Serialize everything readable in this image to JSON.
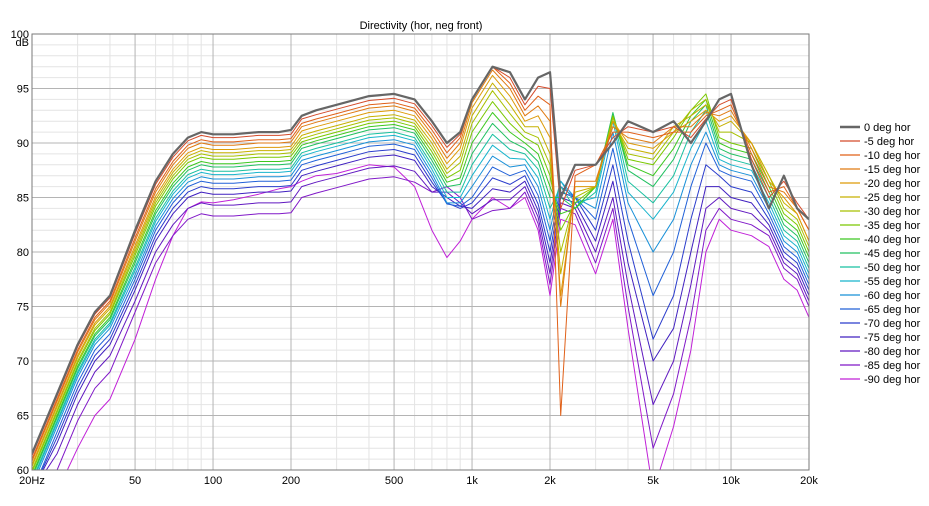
{
  "chart_data": {
    "type": "line",
    "title": "Directivity (hor, neg front)",
    "ylabel": "dB",
    "x_scale": "log",
    "xlim": [
      20,
      20000
    ],
    "ylim": [
      60,
      100
    ],
    "grid": true,
    "legend_position": "right",
    "x_tick_labels": [
      {
        "value": 20,
        "label": "20Hz"
      },
      {
        "value": 50,
        "label": "50"
      },
      {
        "value": 100,
        "label": "100"
      },
      {
        "value": 200,
        "label": "200"
      },
      {
        "value": 500,
        "label": "500"
      },
      {
        "value": 1000,
        "label": "1k"
      },
      {
        "value": 2000,
        "label": "2k"
      },
      {
        "value": 5000,
        "label": "5k"
      },
      {
        "value": 10000,
        "label": "10k"
      },
      {
        "value": 20000,
        "label": "20k"
      }
    ],
    "y_tick_labels": [
      {
        "value": 100,
        "label": "100"
      },
      {
        "value": 95,
        "label": "95"
      },
      {
        "value": 90,
        "label": "90"
      },
      {
        "value": 85,
        "label": "85"
      },
      {
        "value": 80,
        "label": "80"
      },
      {
        "value": 75,
        "label": "75"
      },
      {
        "value": 70,
        "label": "70"
      },
      {
        "value": 65,
        "label": "65"
      },
      {
        "value": 60,
        "label": "60"
      }
    ],
    "x": [
      20,
      25,
      30,
      35,
      40,
      50,
      60,
      70,
      80,
      90,
      100,
      120,
      150,
      180,
      200,
      220,
      250,
      300,
      400,
      500,
      600,
      700,
      800,
      900,
      1000,
      1200,
      1400,
      1600,
      1800,
      2000,
      2200,
      2500,
      3000,
      3500,
      4000,
      5000,
      6000,
      7000,
      8000,
      9000,
      10000,
      12000,
      14000,
      16000,
      18000,
      20000
    ],
    "series": [
      {
        "name": "0 deg hor",
        "color": "#666666",
        "width": 2.2,
        "values": [
          61.5,
          67,
          71.5,
          74.5,
          76,
          82,
          86.5,
          89,
          90.5,
          91,
          90.8,
          90.8,
          91,
          91,
          91.2,
          92.5,
          93,
          93.5,
          94.3,
          94.5,
          94,
          92,
          90,
          91,
          94,
          97,
          96.5,
          94,
          96,
          96.5,
          85,
          88,
          88,
          90,
          92,
          91,
          92,
          90,
          92,
          94,
          94.5,
          88,
          84,
          87,
          84,
          83
        ]
      },
      {
        "name": "-5 deg hor",
        "color": "#d44a2a",
        "width": 1,
        "values": [
          61.3,
          66.8,
          71.3,
          74.3,
          75.8,
          81.7,
          86.2,
          88.7,
          90.2,
          90.7,
          90.5,
          90.5,
          90.7,
          90.7,
          90.8,
          92.2,
          92.6,
          93.1,
          93.9,
          94.1,
          93.6,
          91.6,
          89.6,
          90.8,
          94,
          97,
          96,
          93.5,
          95.2,
          95,
          84,
          87.5,
          88,
          90.5,
          91.5,
          91,
          91.5,
          90.5,
          92.2,
          93.5,
          94,
          88.5,
          85,
          86.5,
          84.5,
          83
        ]
      },
      {
        "name": "-10 deg hor",
        "color": "#e06018",
        "width": 1,
        "values": [
          61,
          66.5,
          71,
          74,
          75.5,
          81.3,
          85.8,
          88.3,
          89.8,
          90.3,
          90.1,
          90.1,
          90.3,
          90.3,
          90.4,
          91.8,
          92.2,
          92.7,
          93.5,
          93.7,
          93.2,
          91.2,
          89.1,
          90.5,
          94,
          97,
          95.5,
          93,
          94.3,
          93.5,
          65,
          87,
          88,
          91,
          91,
          90.5,
          91,
          91,
          92.5,
          93,
          93.5,
          89,
          85.5,
          86,
          84,
          82
        ]
      },
      {
        "name": "-15 deg hor",
        "color": "#e07a10",
        "width": 1,
        "values": [
          60.8,
          66.3,
          70.8,
          73.8,
          75.3,
          81,
          85.5,
          88,
          89.5,
          90,
          89.8,
          89.8,
          90,
          90,
          90.1,
          91.5,
          91.9,
          92.4,
          93.2,
          93.4,
          92.9,
          90.8,
          88.6,
          90,
          93.7,
          96.7,
          95,
          92.5,
          93.4,
          92,
          75,
          86.5,
          86.5,
          91.5,
          90.5,
          90,
          91.5,
          91.5,
          92.8,
          92.5,
          93,
          89.5,
          86,
          85.5,
          84,
          82
        ]
      },
      {
        "name": "-20 deg hor",
        "color": "#dd9a08",
        "width": 1,
        "values": [
          60.5,
          66,
          70.5,
          73.5,
          75,
          80.6,
          85.1,
          87.6,
          89.1,
          89.6,
          89.4,
          89.4,
          89.6,
          89.6,
          89.7,
          91.1,
          91.5,
          92,
          92.8,
          93,
          92.5,
          90.4,
          88.1,
          89.5,
          93.2,
          96.2,
          94.3,
          92,
          92.5,
          90.5,
          76,
          86,
          86,
          92,
          90,
          89.5,
          91,
          92,
          93,
          92,
          92.5,
          90,
          86.5,
          85,
          83.5,
          81
        ]
      },
      {
        "name": "-25 deg hor",
        "color": "#c6b000",
        "width": 1,
        "values": [
          60.3,
          65.8,
          70.3,
          73.3,
          74.8,
          80.3,
          84.8,
          87.3,
          88.8,
          89.3,
          89.1,
          89.1,
          89.3,
          89.3,
          89.4,
          90.7,
          91.1,
          91.6,
          92.4,
          92.6,
          92.1,
          90,
          87.6,
          88.8,
          92.5,
          95.5,
          93.5,
          91.5,
          91.5,
          89,
          78,
          85.5,
          86,
          92,
          89.5,
          89,
          91.5,
          92.5,
          93.5,
          91.5,
          92,
          90,
          87,
          84.5,
          83.5,
          81
        ]
      },
      {
        "name": "-30 deg hor",
        "color": "#a8c000",
        "width": 1,
        "values": [
          60,
          65.5,
          70,
          73,
          74.5,
          80,
          84.5,
          87,
          88.5,
          89,
          88.8,
          88.8,
          89,
          89,
          89.1,
          90.4,
          90.8,
          91.3,
          92.1,
          92.3,
          91.8,
          89.6,
          87.2,
          88.2,
          91.8,
          94.8,
          92.7,
          91,
          90.5,
          88,
          80,
          85,
          86,
          92.3,
          89,
          88.5,
          91,
          93,
          94,
          91,
          91,
          90,
          87,
          84,
          83,
          80.5
        ]
      },
      {
        "name": "-35 deg hor",
        "color": "#7ac800",
        "width": 1,
        "values": [
          59.8,
          65.3,
          69.8,
          72.8,
          74.3,
          79.7,
          84.2,
          86.7,
          88.2,
          88.7,
          88.5,
          88.5,
          88.7,
          88.7,
          88.8,
          90.1,
          90.5,
          91,
          91.8,
          92,
          91.5,
          89.2,
          86.8,
          87.5,
          91,
          93.8,
          91.8,
          90.5,
          89.8,
          87,
          82,
          84.5,
          86,
          92.5,
          88.5,
          88,
          90.5,
          93,
          94.5,
          90.5,
          90,
          89.5,
          86.5,
          83.5,
          82.5,
          80
        ]
      },
      {
        "name": "-40 deg hor",
        "color": "#3cc820",
        "width": 1,
        "values": [
          59.5,
          65,
          69.5,
          72.5,
          74,
          79.3,
          83.8,
          86.3,
          87.8,
          88.3,
          88.1,
          88.1,
          88.3,
          88.3,
          88.4,
          89.8,
          90.2,
          90.7,
          91.5,
          91.7,
          91.2,
          88.8,
          86.4,
          86.8,
          90,
          92.8,
          91,
          90,
          89,
          86,
          83.5,
          84,
          86,
          92.5,
          88,
          87,
          89.5,
          92.5,
          94,
          90,
          89.5,
          89,
          86,
          83,
          82,
          79.5
        ]
      },
      {
        "name": "-45 deg hor",
        "color": "#20c060",
        "width": 1,
        "values": [
          59.3,
          64.8,
          69.3,
          72.3,
          73.8,
          79,
          83.5,
          86,
          87.5,
          88,
          87.8,
          87.8,
          88,
          88,
          88.1,
          89.5,
          89.9,
          90.4,
          91.2,
          91.4,
          90.9,
          88.4,
          86,
          86.2,
          89,
          91.8,
          90.2,
          89.5,
          88.3,
          85,
          85,
          84,
          86,
          92.8,
          87.5,
          86,
          88.5,
          92,
          93.5,
          89.5,
          89,
          88.5,
          85.5,
          82.5,
          81.5,
          79
        ]
      },
      {
        "name": "-50 deg hor",
        "color": "#18c0a0",
        "width": 1,
        "values": [
          59,
          64.5,
          69,
          72,
          73.5,
          78.6,
          83.1,
          85.6,
          87.1,
          87.6,
          87.4,
          87.4,
          87.6,
          87.6,
          87.7,
          89.1,
          89.5,
          90,
          90.8,
          91,
          90.5,
          88,
          85.5,
          85.5,
          88,
          90.8,
          89.4,
          89,
          87.6,
          84,
          86,
          84,
          85.5,
          92.5,
          86.5,
          84.5,
          87,
          91,
          93,
          89,
          88.5,
          88,
          85,
          82,
          81,
          78.5
        ]
      },
      {
        "name": "-55 deg hor",
        "color": "#18b4cc",
        "width": 1,
        "values": [
          58.8,
          64.3,
          68.8,
          71.8,
          73.3,
          78.3,
          82.8,
          85.3,
          86.8,
          87.3,
          87.1,
          87.1,
          87.3,
          87.3,
          87.4,
          88.8,
          89.2,
          89.7,
          90.5,
          90.7,
          90.2,
          87.6,
          85,
          85,
          87,
          89.8,
          88.6,
          88.5,
          86.8,
          83,
          86.5,
          84.5,
          85,
          92,
          85.5,
          83,
          85.5,
          89.5,
          92,
          88.5,
          88,
          87.5,
          84.5,
          81.5,
          80.5,
          78
        ]
      },
      {
        "name": "-60 deg hor",
        "color": "#1890d8",
        "width": 1,
        "values": [
          58.5,
          64,
          68.5,
          71.5,
          73,
          77.9,
          82.4,
          84.9,
          86.4,
          86.9,
          86.7,
          86.7,
          86.9,
          86.9,
          87,
          88.4,
          88.8,
          89.3,
          90.1,
          90.3,
          89.8,
          87.2,
          84.5,
          84.5,
          86,
          88.8,
          87.8,
          88,
          86,
          82,
          86.5,
          85,
          84,
          91,
          84.5,
          80,
          83,
          88,
          91,
          88,
          87.5,
          87,
          84,
          81,
          80,
          77.5
        ]
      },
      {
        "name": "-65 deg hor",
        "color": "#2060d8",
        "width": 1,
        "values": [
          58,
          63.5,
          68,
          71,
          72.5,
          77.5,
          82,
          84.5,
          86,
          86.5,
          86.3,
          86.3,
          86.5,
          86.5,
          86.6,
          88,
          88.4,
          88.9,
          89.7,
          89.9,
          89.4,
          86.8,
          84.4,
          84.2,
          85,
          87.8,
          87,
          87.5,
          85.2,
          81,
          86,
          85,
          83,
          89.5,
          83,
          76,
          80,
          86,
          90,
          87.5,
          87,
          86.5,
          83.5,
          80.5,
          79.5,
          77
        ]
      },
      {
        "name": "-70 deg hor",
        "color": "#2a3ccc",
        "width": 1,
        "values": [
          57.5,
          63,
          67.5,
          70.5,
          72,
          77,
          81.5,
          84,
          85.5,
          86,
          85.8,
          85.8,
          86,
          86,
          86.1,
          87.5,
          87.9,
          88.4,
          89.2,
          89.4,
          88.9,
          86.4,
          84.5,
          84,
          84.5,
          86.8,
          86.2,
          87,
          84.4,
          80,
          85.5,
          85,
          82,
          88,
          81,
          72,
          76,
          83,
          88,
          87,
          86,
          85.5,
          83,
          80,
          79,
          76.5
        ]
      },
      {
        "name": "-75 deg hor",
        "color": "#4020c0",
        "width": 1,
        "values": [
          57,
          62.5,
          67,
          70,
          71.5,
          76.5,
          81,
          83.5,
          85,
          85.5,
          85.3,
          85.3,
          85.5,
          85.5,
          85.6,
          87,
          87.4,
          87.9,
          88.7,
          88.9,
          88.4,
          86,
          85,
          84.2,
          84,
          85.8,
          85.5,
          86.5,
          83.8,
          79,
          85,
          84.5,
          81,
          86.5,
          79,
          70,
          73,
          80,
          86,
          86,
          85,
          84.5,
          82.5,
          79.5,
          78.5,
          76
        ]
      },
      {
        "name": "-80 deg hor",
        "color": "#6018c0",
        "width": 1,
        "values": [
          56,
          61.5,
          66,
          69,
          70.5,
          75.5,
          80,
          82.5,
          84,
          84.5,
          84.3,
          84.3,
          84.5,
          84.5,
          84.6,
          86,
          86.4,
          86.9,
          87.7,
          87.9,
          87.4,
          85.5,
          85.5,
          84.5,
          83.5,
          84.8,
          84.8,
          86,
          83.2,
          78,
          84.5,
          84,
          80,
          85,
          77,
          66,
          70,
          77,
          84,
          85,
          84,
          83.5,
          82,
          79,
          78,
          75.5
        ]
      },
      {
        "name": "-85 deg hor",
        "color": "#8018c8",
        "width": 1,
        "values": [
          54.5,
          60,
          64.5,
          67.5,
          69,
          74.5,
          79,
          81.5,
          83,
          83.5,
          83.3,
          83.3,
          83.5,
          83.5,
          83.6,
          85,
          85.4,
          85.9,
          86.7,
          86.9,
          86.4,
          85.5,
          86,
          85,
          83,
          83.8,
          84,
          85.5,
          82.6,
          77,
          84,
          83.5,
          79,
          84,
          75,
          62,
          67,
          74,
          82,
          84,
          83,
          82.5,
          81.5,
          78.5,
          77.5,
          75
        ]
      },
      {
        "name": "-90 deg hor",
        "color": "#c020d8",
        "width": 1,
        "values": [
          52,
          57.5,
          62,
          65,
          66.5,
          72,
          77.5,
          81.5,
          84,
          84.6,
          84.5,
          84.8,
          85.3,
          85.8,
          86,
          86.5,
          87,
          87.2,
          88,
          87.8,
          86,
          82,
          79.5,
          81,
          83,
          85,
          84,
          85,
          82,
          76,
          83,
          82.5,
          78,
          83,
          73,
          58,
          64,
          71,
          80,
          83,
          82,
          81.5,
          80.5,
          77.5,
          76.5,
          74
        ]
      }
    ]
  }
}
